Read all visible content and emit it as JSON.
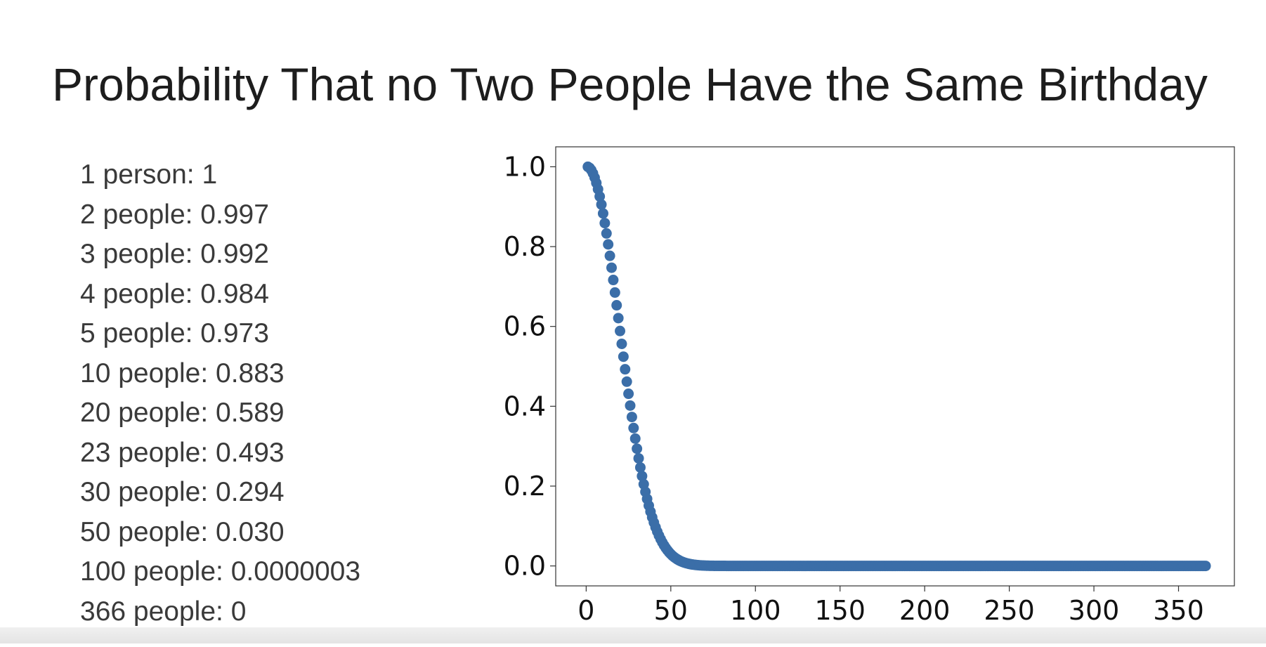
{
  "title": "Probability That no Two People Have the Same Birthday",
  "list": [
    "1 person: 1",
    "2 people: 0.997",
    "3 people: 0.992",
    "4 people: 0.984",
    "5 people: 0.973",
    "10 people: 0.883",
    "20 people: 0.589",
    "23 people: 0.493",
    "30 people: 0.294",
    "50 people: 0.030",
    "100 people: 0.0000003",
    "366 people: 0"
  ],
  "chart_data": {
    "type": "scatter",
    "series_color": "#3b6ea8",
    "xlim": [
      -18,
      383
    ],
    "ylim": [
      -0.05,
      1.05
    ],
    "xticks": [
      "0",
      "50",
      "100",
      "150",
      "200",
      "250",
      "300",
      "350"
    ],
    "yticks": [
      "0.0",
      "0.2",
      "0.4",
      "0.6",
      "0.8",
      "1.0"
    ],
    "x_range": [
      1,
      366
    ],
    "y_rule": "probability that n people all have distinct birthdays (365-day year)",
    "grid": false
  }
}
